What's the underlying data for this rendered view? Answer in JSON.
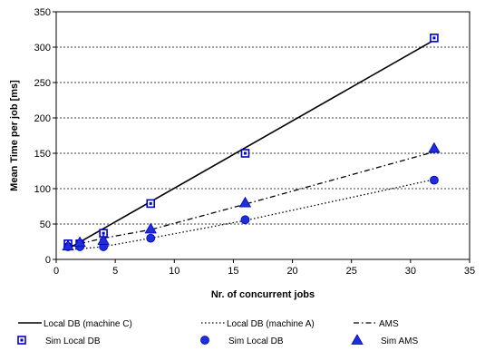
{
  "chart_data": {
    "type": "line",
    "xlabel": "Nr. of concurrent jobs",
    "ylabel": "Mean Time per job [ms]",
    "xlim": [
      0,
      35
    ],
    "ylim": [
      0,
      350
    ],
    "xticks": [
      0,
      5,
      10,
      15,
      20,
      25,
      30,
      35
    ],
    "yticks": [
      0,
      50,
      100,
      150,
      200,
      250,
      300,
      350
    ],
    "grid": "horizontal",
    "legend_position": "bottom",
    "colors": {
      "line": "#000000",
      "marker": "#0000cc",
      "marker_fill": "#1f2fd6"
    },
    "series": [
      {
        "name": "Local DB (machine C)",
        "kind": "line",
        "dash": "solid",
        "x": [
          1,
          32
        ],
        "y": [
          15,
          310
        ]
      },
      {
        "name": "Local DB (machine A)",
        "kind": "line",
        "dash": "dotted",
        "x": [
          1,
          2,
          4,
          8,
          16,
          32
        ],
        "y": [
          14,
          15,
          18,
          30,
          55,
          113
        ]
      },
      {
        "name": "AMS",
        "kind": "line",
        "dash": "dashdot",
        "x": [
          1,
          2,
          4,
          8,
          16,
          32
        ],
        "y": [
          18,
          22,
          30,
          42,
          78,
          152
        ]
      },
      {
        "name": "Sim Local DB",
        "kind": "marker",
        "marker": "square",
        "x": [
          1,
          2,
          4,
          8,
          16,
          32
        ],
        "y": [
          22,
          22,
          37,
          79,
          150,
          313
        ]
      },
      {
        "name": "Sim Local DB",
        "kind": "marker",
        "marker": "circle",
        "x": [
          1,
          2,
          4,
          8,
          16,
          32
        ],
        "y": [
          18,
          18,
          18,
          30,
          56,
          112
        ]
      },
      {
        "name": "Sim AMS",
        "kind": "marker",
        "marker": "triangle",
        "x": [
          1,
          2,
          4,
          8,
          16,
          32
        ],
        "y": [
          19,
          24,
          27,
          43,
          80,
          157
        ]
      }
    ]
  }
}
